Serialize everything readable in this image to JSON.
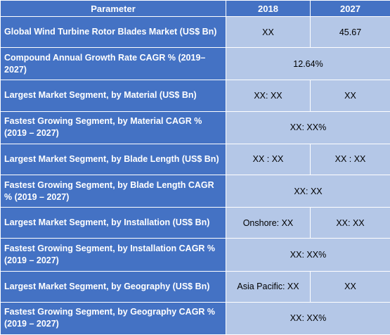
{
  "header": {
    "parameter": "Parameter",
    "year_a": "2018",
    "year_b": "2027"
  },
  "rows": [
    {
      "parameter": "Global Wind Turbine Rotor Blades Market (US$ Bn)",
      "val_2018": "XX",
      "val_2027": "45.67"
    },
    {
      "parameter": "Compound Annual Growth Rate CAGR % (2019–2027)",
      "merged": "12.64%"
    },
    {
      "parameter": "Largest Market Segment, by Material (US$ Bn)",
      "val_2018": "XX: XX",
      "val_2027": "XX"
    },
    {
      "parameter": "Fastest Growing Segment, by Material CAGR % (2019 – 2027)",
      "merged": "XX: XX%"
    },
    {
      "parameter": "Largest Market Segment, by Blade Length (US$ Bn)",
      "val_2018": "XX : XX",
      "val_2027": "XX : XX"
    },
    {
      "parameter": "Fastest Growing Segment, by Blade Length CAGR % (2019 – 2027)",
      "merged": "XX: XX"
    },
    {
      "parameter": "Largest Market Segment, by Installation (US$ Bn)",
      "val_2018": "Onshore: XX",
      "val_2027": "XX: XX"
    },
    {
      "parameter": "Fastest Growing Segment, by Installation CAGR % (2019 – 2027)",
      "merged": "XX: XX%"
    },
    {
      "parameter": "Largest Market Segment, by Geography (US$ Bn)",
      "val_2018": "Asia Pacific: XX",
      "val_2027": "XX"
    },
    {
      "parameter": "Fastest Growing Segment, by Geography CAGR % (2019 – 2027)",
      "merged": "XX: XX%"
    }
  ]
}
